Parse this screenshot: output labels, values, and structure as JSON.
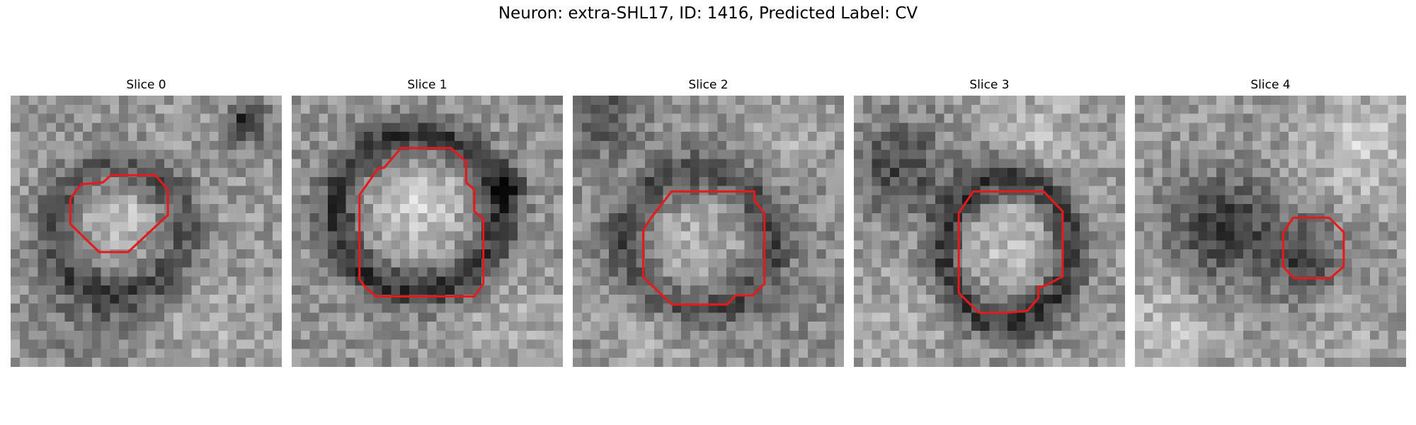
{
  "figure": {
    "title": "Neuron: extra-SHL17, ID: 1416, Predicted Label: CV",
    "contour_color": "#e41a1c"
  },
  "slices": [
    {
      "title": "Slice 0",
      "image": "grayscale-em-patch"
    },
    {
      "title": "Slice 1",
      "image": "grayscale-em-patch"
    },
    {
      "title": "Slice 2",
      "image": "grayscale-em-patch"
    },
    {
      "title": "Slice 3",
      "image": "grayscale-em-patch"
    },
    {
      "title": "Slice 4",
      "image": "grayscale-em-patch"
    }
  ]
}
